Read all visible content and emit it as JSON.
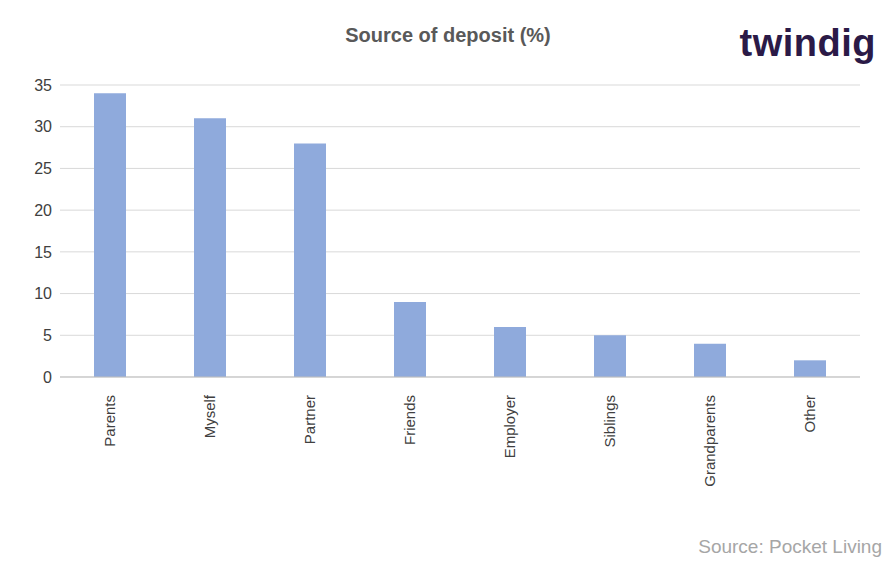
{
  "chart_data": {
    "type": "bar",
    "title": "Source of deposit (%)",
    "categories": [
      "Parents",
      "Myself",
      "Partner",
      "Friends",
      "Employer",
      "Siblings",
      "Grandparents",
      "Other"
    ],
    "values": [
      34,
      31,
      28,
      9,
      6,
      5,
      4,
      2
    ],
    "color": "#8faadc",
    "ylim": [
      0,
      35
    ],
    "yticks": [
      0,
      5,
      10,
      15,
      20,
      25,
      30,
      35
    ],
    "grid": true,
    "annotations": [
      "twindig",
      "Source: Pocket Living"
    ]
  }
}
